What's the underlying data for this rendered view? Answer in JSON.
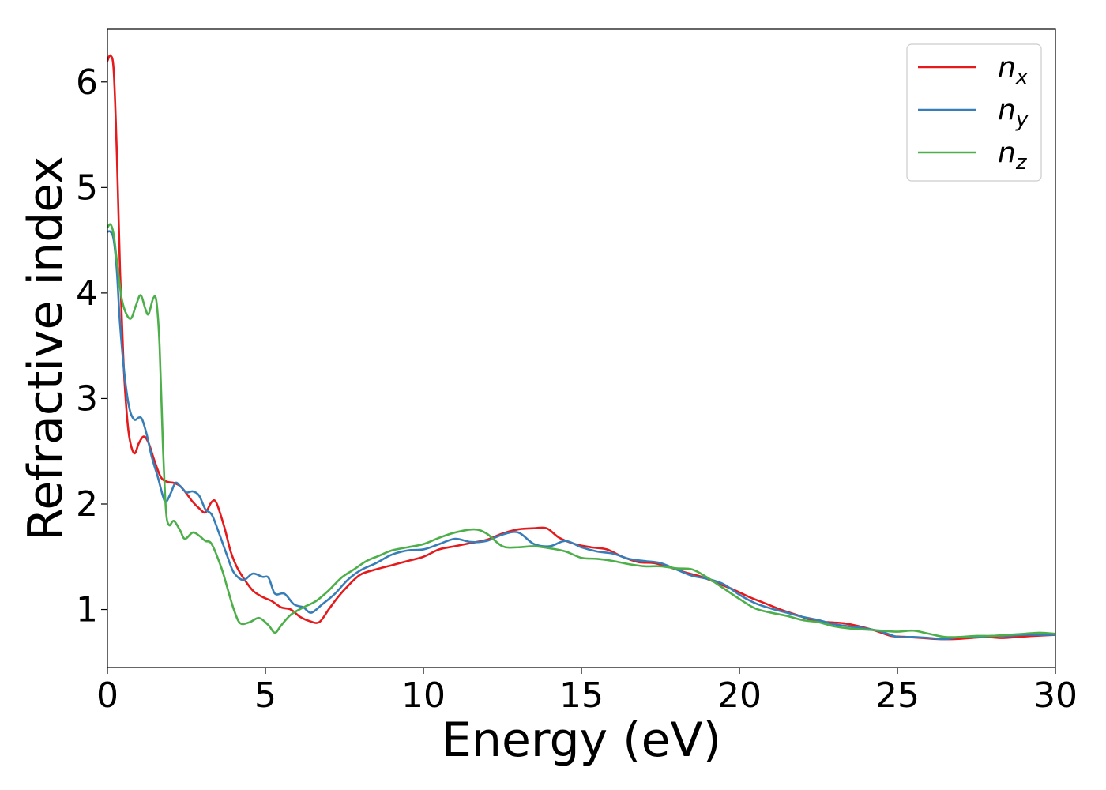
{
  "chart_data": {
    "type": "line",
    "title": "",
    "xlabel": "Energy (eV)",
    "ylabel": "Refractive index",
    "xlim": [
      0,
      30
    ],
    "ylim": [
      0.45,
      6.5
    ],
    "xticks": [
      0,
      5,
      10,
      15,
      20,
      25,
      30
    ],
    "yticks": [
      1,
      2,
      3,
      4,
      5,
      6
    ],
    "grid": false,
    "legend_position": "top-right",
    "series": [
      {
        "name": "n",
        "subscript": "x",
        "color": "#e41a1c",
        "points": [
          [
            0.0,
            6.2
          ],
          [
            0.1,
            6.25
          ],
          [
            0.2,
            6.1
          ],
          [
            0.3,
            5.3
          ],
          [
            0.4,
            4.2
          ],
          [
            0.5,
            3.4
          ],
          [
            0.6,
            2.9
          ],
          [
            0.7,
            2.62
          ],
          [
            0.85,
            2.48
          ],
          [
            1.0,
            2.58
          ],
          [
            1.15,
            2.64
          ],
          [
            1.3,
            2.58
          ],
          [
            1.5,
            2.4
          ],
          [
            1.7,
            2.25
          ],
          [
            1.9,
            2.21
          ],
          [
            2.1,
            2.2
          ],
          [
            2.3,
            2.17
          ],
          [
            2.5,
            2.1
          ],
          [
            2.7,
            2.02
          ],
          [
            2.9,
            1.96
          ],
          [
            3.1,
            1.92
          ],
          [
            3.3,
            2.02
          ],
          [
            3.45,
            2.01
          ],
          [
            3.7,
            1.78
          ],
          [
            3.9,
            1.55
          ],
          [
            4.1,
            1.4
          ],
          [
            4.3,
            1.3
          ],
          [
            4.6,
            1.18
          ],
          [
            4.9,
            1.12
          ],
          [
            5.2,
            1.08
          ],
          [
            5.5,
            1.02
          ],
          [
            5.8,
            1.0
          ],
          [
            6.1,
            0.93
          ],
          [
            6.4,
            0.89
          ],
          [
            6.7,
            0.88
          ],
          [
            7.0,
            1.0
          ],
          [
            7.3,
            1.12
          ],
          [
            7.6,
            1.22
          ],
          [
            8.0,
            1.33
          ],
          [
            8.5,
            1.38
          ],
          [
            9.0,
            1.42
          ],
          [
            9.5,
            1.46
          ],
          [
            10.0,
            1.5
          ],
          [
            10.5,
            1.57
          ],
          [
            11.0,
            1.6
          ],
          [
            11.5,
            1.63
          ],
          [
            12.0,
            1.66
          ],
          [
            12.5,
            1.72
          ],
          [
            13.0,
            1.76
          ],
          [
            13.5,
            1.77
          ],
          [
            13.9,
            1.77
          ],
          [
            14.3,
            1.68
          ],
          [
            14.8,
            1.62
          ],
          [
            15.3,
            1.59
          ],
          [
            15.8,
            1.57
          ],
          [
            16.3,
            1.5
          ],
          [
            16.8,
            1.45
          ],
          [
            17.3,
            1.44
          ],
          [
            17.8,
            1.4
          ],
          [
            18.3,
            1.35
          ],
          [
            18.8,
            1.31
          ],
          [
            19.3,
            1.25
          ],
          [
            19.8,
            1.19
          ],
          [
            20.3,
            1.12
          ],
          [
            20.8,
            1.06
          ],
          [
            21.3,
            1.0
          ],
          [
            21.8,
            0.95
          ],
          [
            22.3,
            0.9
          ],
          [
            22.8,
            0.88
          ],
          [
            23.3,
            0.87
          ],
          [
            23.8,
            0.84
          ],
          [
            24.3,
            0.8
          ],
          [
            24.8,
            0.75
          ],
          [
            25.3,
            0.74
          ],
          [
            25.8,
            0.73
          ],
          [
            26.3,
            0.72
          ],
          [
            26.8,
            0.72
          ],
          [
            27.3,
            0.73
          ],
          [
            27.8,
            0.74
          ],
          [
            28.3,
            0.73
          ],
          [
            28.8,
            0.74
          ],
          [
            29.3,
            0.75
          ],
          [
            30.0,
            0.76
          ]
        ]
      },
      {
        "name": "n",
        "subscript": "y",
        "color": "#377eb8",
        "points": [
          [
            0.0,
            4.58
          ],
          [
            0.1,
            4.58
          ],
          [
            0.2,
            4.5
          ],
          [
            0.3,
            4.2
          ],
          [
            0.4,
            3.7
          ],
          [
            0.55,
            3.2
          ],
          [
            0.7,
            2.9
          ],
          [
            0.85,
            2.8
          ],
          [
            1.0,
            2.82
          ],
          [
            1.1,
            2.8
          ],
          [
            1.25,
            2.65
          ],
          [
            1.4,
            2.45
          ],
          [
            1.6,
            2.25
          ],
          [
            1.75,
            2.08
          ],
          [
            1.85,
            2.02
          ],
          [
            2.0,
            2.1
          ],
          [
            2.15,
            2.2
          ],
          [
            2.3,
            2.17
          ],
          [
            2.5,
            2.11
          ],
          [
            2.7,
            2.12
          ],
          [
            2.9,
            2.08
          ],
          [
            3.1,
            1.95
          ],
          [
            3.3,
            1.9
          ],
          [
            3.5,
            1.75
          ],
          [
            3.8,
            1.5
          ],
          [
            4.0,
            1.35
          ],
          [
            4.3,
            1.28
          ],
          [
            4.6,
            1.34
          ],
          [
            4.9,
            1.31
          ],
          [
            5.1,
            1.3
          ],
          [
            5.3,
            1.15
          ],
          [
            5.6,
            1.15
          ],
          [
            5.9,
            1.05
          ],
          [
            6.2,
            1.02
          ],
          [
            6.45,
            0.97
          ],
          [
            6.8,
            1.05
          ],
          [
            7.2,
            1.15
          ],
          [
            7.6,
            1.28
          ],
          [
            8.0,
            1.37
          ],
          [
            8.5,
            1.44
          ],
          [
            9.0,
            1.52
          ],
          [
            9.5,
            1.56
          ],
          [
            10.0,
            1.57
          ],
          [
            10.5,
            1.62
          ],
          [
            11.0,
            1.67
          ],
          [
            11.5,
            1.64
          ],
          [
            12.0,
            1.65
          ],
          [
            12.5,
            1.71
          ],
          [
            13.0,
            1.73
          ],
          [
            13.5,
            1.62
          ],
          [
            14.0,
            1.6
          ],
          [
            14.5,
            1.65
          ],
          [
            15.0,
            1.59
          ],
          [
            15.5,
            1.55
          ],
          [
            16.0,
            1.53
          ],
          [
            16.5,
            1.48
          ],
          [
            17.0,
            1.46
          ],
          [
            17.5,
            1.44
          ],
          [
            18.0,
            1.38
          ],
          [
            18.5,
            1.32
          ],
          [
            19.0,
            1.29
          ],
          [
            19.5,
            1.24
          ],
          [
            20.0,
            1.14
          ],
          [
            20.5,
            1.06
          ],
          [
            21.0,
            1.01
          ],
          [
            21.5,
            0.97
          ],
          [
            22.0,
            0.93
          ],
          [
            22.5,
            0.9
          ],
          [
            23.0,
            0.86
          ],
          [
            23.5,
            0.84
          ],
          [
            24.0,
            0.82
          ],
          [
            24.5,
            0.79
          ],
          [
            25.0,
            0.74
          ],
          [
            25.5,
            0.74
          ],
          [
            26.0,
            0.73
          ],
          [
            26.5,
            0.72
          ],
          [
            27.0,
            0.74
          ],
          [
            27.5,
            0.74
          ],
          [
            28.0,
            0.75
          ],
          [
            28.5,
            0.75
          ],
          [
            29.0,
            0.76
          ],
          [
            29.5,
            0.76
          ],
          [
            30.0,
            0.76
          ]
        ]
      },
      {
        "name": "n",
        "subscript": "z",
        "color": "#4daf4a",
        "points": [
          [
            0.0,
            4.62
          ],
          [
            0.1,
            4.65
          ],
          [
            0.2,
            4.55
          ],
          [
            0.3,
            4.3
          ],
          [
            0.45,
            3.95
          ],
          [
            0.6,
            3.8
          ],
          [
            0.75,
            3.76
          ],
          [
            0.9,
            3.88
          ],
          [
            1.05,
            3.98
          ],
          [
            1.2,
            3.85
          ],
          [
            1.3,
            3.8
          ],
          [
            1.45,
            3.95
          ],
          [
            1.55,
            3.92
          ],
          [
            1.65,
            3.5
          ],
          [
            1.75,
            2.6
          ],
          [
            1.85,
            1.95
          ],
          [
            1.95,
            1.8
          ],
          [
            2.1,
            1.84
          ],
          [
            2.3,
            1.75
          ],
          [
            2.45,
            1.67
          ],
          [
            2.7,
            1.73
          ],
          [
            2.9,
            1.7
          ],
          [
            3.1,
            1.65
          ],
          [
            3.3,
            1.62
          ],
          [
            3.6,
            1.4
          ],
          [
            3.8,
            1.2
          ],
          [
            4.0,
            1.0
          ],
          [
            4.2,
            0.87
          ],
          [
            4.5,
            0.88
          ],
          [
            4.8,
            0.92
          ],
          [
            5.1,
            0.85
          ],
          [
            5.3,
            0.78
          ],
          [
            5.5,
            0.85
          ],
          [
            5.8,
            0.95
          ],
          [
            6.2,
            1.02
          ],
          [
            6.6,
            1.08
          ],
          [
            7.0,
            1.18
          ],
          [
            7.4,
            1.3
          ],
          [
            7.8,
            1.38
          ],
          [
            8.2,
            1.46
          ],
          [
            8.6,
            1.51
          ],
          [
            9.0,
            1.56
          ],
          [
            9.5,
            1.59
          ],
          [
            10.0,
            1.62
          ],
          [
            10.5,
            1.68
          ],
          [
            11.0,
            1.73
          ],
          [
            11.6,
            1.76
          ],
          [
            12.0,
            1.72
          ],
          [
            12.5,
            1.6
          ],
          [
            13.0,
            1.59
          ],
          [
            13.5,
            1.6
          ],
          [
            14.0,
            1.58
          ],
          [
            14.5,
            1.55
          ],
          [
            15.0,
            1.49
          ],
          [
            15.5,
            1.48
          ],
          [
            16.0,
            1.46
          ],
          [
            16.5,
            1.43
          ],
          [
            17.0,
            1.41
          ],
          [
            17.5,
            1.41
          ],
          [
            18.0,
            1.39
          ],
          [
            18.5,
            1.38
          ],
          [
            19.0,
            1.3
          ],
          [
            19.5,
            1.2
          ],
          [
            20.0,
            1.1
          ],
          [
            20.5,
            1.01
          ],
          [
            21.0,
            0.97
          ],
          [
            21.5,
            0.94
          ],
          [
            22.0,
            0.9
          ],
          [
            22.5,
            0.88
          ],
          [
            23.0,
            0.84
          ],
          [
            23.5,
            0.82
          ],
          [
            24.0,
            0.81
          ],
          [
            24.5,
            0.8
          ],
          [
            25.0,
            0.79
          ],
          [
            25.5,
            0.8
          ],
          [
            26.0,
            0.77
          ],
          [
            26.5,
            0.74
          ],
          [
            27.0,
            0.74
          ],
          [
            27.5,
            0.75
          ],
          [
            28.0,
            0.75
          ],
          [
            28.5,
            0.76
          ],
          [
            29.0,
            0.77
          ],
          [
            29.5,
            0.78
          ],
          [
            30.0,
            0.77
          ]
        ]
      }
    ]
  }
}
